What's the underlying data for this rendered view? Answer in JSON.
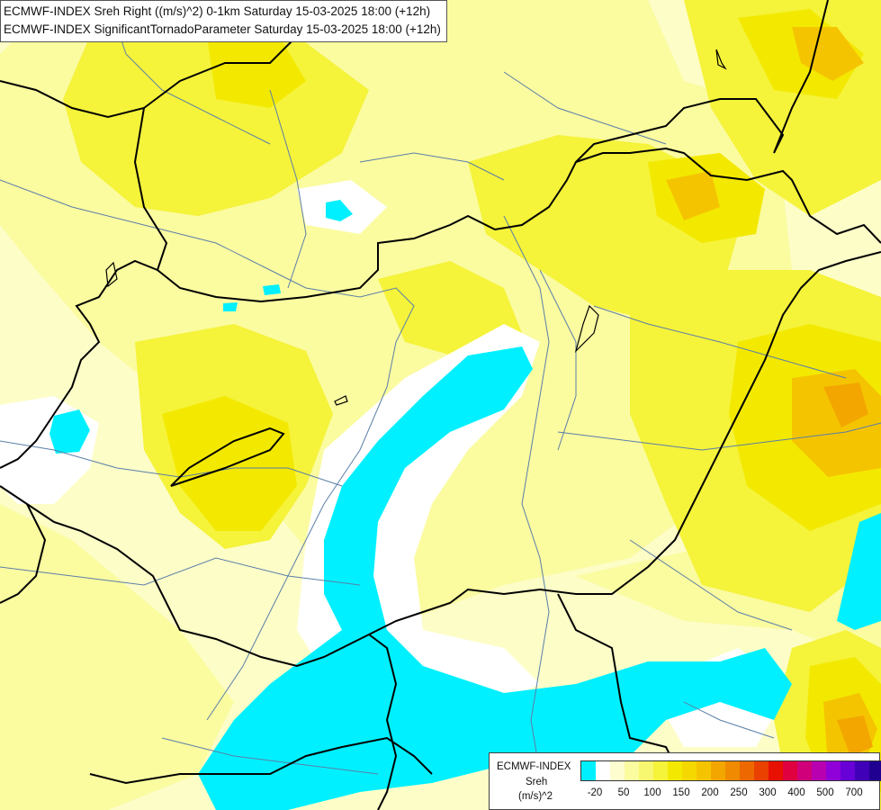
{
  "title": {
    "line1": "ECMWF-INDEX Sreh Right ((m/s)^2) 0-1km Saturday 15-03-2025 18:00 (+12h)",
    "line2": "ECMWF-INDEX SignificantTornadoParameter Saturday 15-03-2025 18:00 (+12h)"
  },
  "map": {
    "colors": {
      "background": "#fdfdc8",
      "pale_yellow": "#fbfba0",
      "yellow": "#f5f33a",
      "bright_yellow": "#f3e900",
      "gold": "#f5c400",
      "orange": "#f3a600",
      "cyan": "#00f0ff",
      "white": "#ffffff",
      "border": "#000000",
      "river": "#5a7fa8"
    }
  },
  "legend": {
    "product": "ECMWF-INDEX",
    "variable": "Sreh",
    "unit": "(m/s)^2",
    "colors": [
      "#00f0ff",
      "#ffffff",
      "#fdfdd0",
      "#fbfba0",
      "#f8f870",
      "#f5f33a",
      "#f3e900",
      "#f5d800",
      "#f5c400",
      "#f3a600",
      "#f08a00",
      "#ee6800",
      "#ea4000",
      "#e81000",
      "#e00040",
      "#d0007a",
      "#b800b0",
      "#9000d8",
      "#6800d8",
      "#4000b8",
      "#200090",
      "#000068"
    ],
    "ticks": [
      "-20",
      "50",
      "100",
      "150",
      "200",
      "250",
      "300",
      "400",
      "500",
      "700"
    ]
  }
}
